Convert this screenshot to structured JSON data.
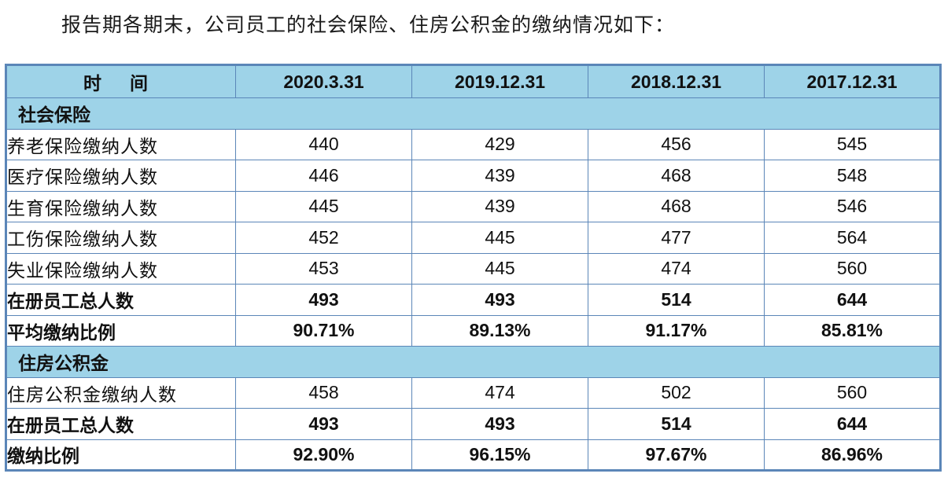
{
  "intro_text": "报告期各期末，公司员工的社会保险、住房公积金的缴纳情况如下：",
  "table": {
    "header": [
      "时 间",
      "2020.3.31",
      "2019.12.31",
      "2018.12.31",
      "2017.12.31"
    ],
    "social_insurance": {
      "title": "社会保险",
      "rows": [
        {
          "label": "养老保险缴纳人数",
          "values": [
            "440",
            "429",
            "456",
            "545"
          ]
        },
        {
          "label": "医疗保险缴纳人数",
          "values": [
            "446",
            "439",
            "468",
            "548"
          ]
        },
        {
          "label": "生育保险缴纳人数",
          "values": [
            "445",
            "439",
            "468",
            "546"
          ]
        },
        {
          "label": "工伤保险缴纳人数",
          "values": [
            "452",
            "445",
            "477",
            "564"
          ]
        },
        {
          "label": "失业保险缴纳人数",
          "values": [
            "453",
            "445",
            "474",
            "560"
          ]
        },
        {
          "label": "在册员工总人数",
          "values": [
            "493",
            "493",
            "514",
            "644"
          ]
        },
        {
          "label": "平均缴纳比例",
          "values": [
            "90.71%",
            "89.13%",
            "91.17%",
            "85.81%"
          ]
        }
      ]
    },
    "housing_fund": {
      "title": "住房公积金",
      "rows": [
        {
          "label": "住房公积金缴纳人数",
          "values": [
            "458",
            "474",
            "502",
            "560"
          ]
        },
        {
          "label": "在册员工总人数",
          "values": [
            "493",
            "493",
            "514",
            "644"
          ]
        },
        {
          "label": "缴纳比例",
          "values": [
            "92.90%",
            "96.15%",
            "97.67%",
            "86.96%"
          ]
        }
      ]
    }
  },
  "colors": {
    "header_bg": "#9ed3e8",
    "border": "#5b86b8"
  }
}
